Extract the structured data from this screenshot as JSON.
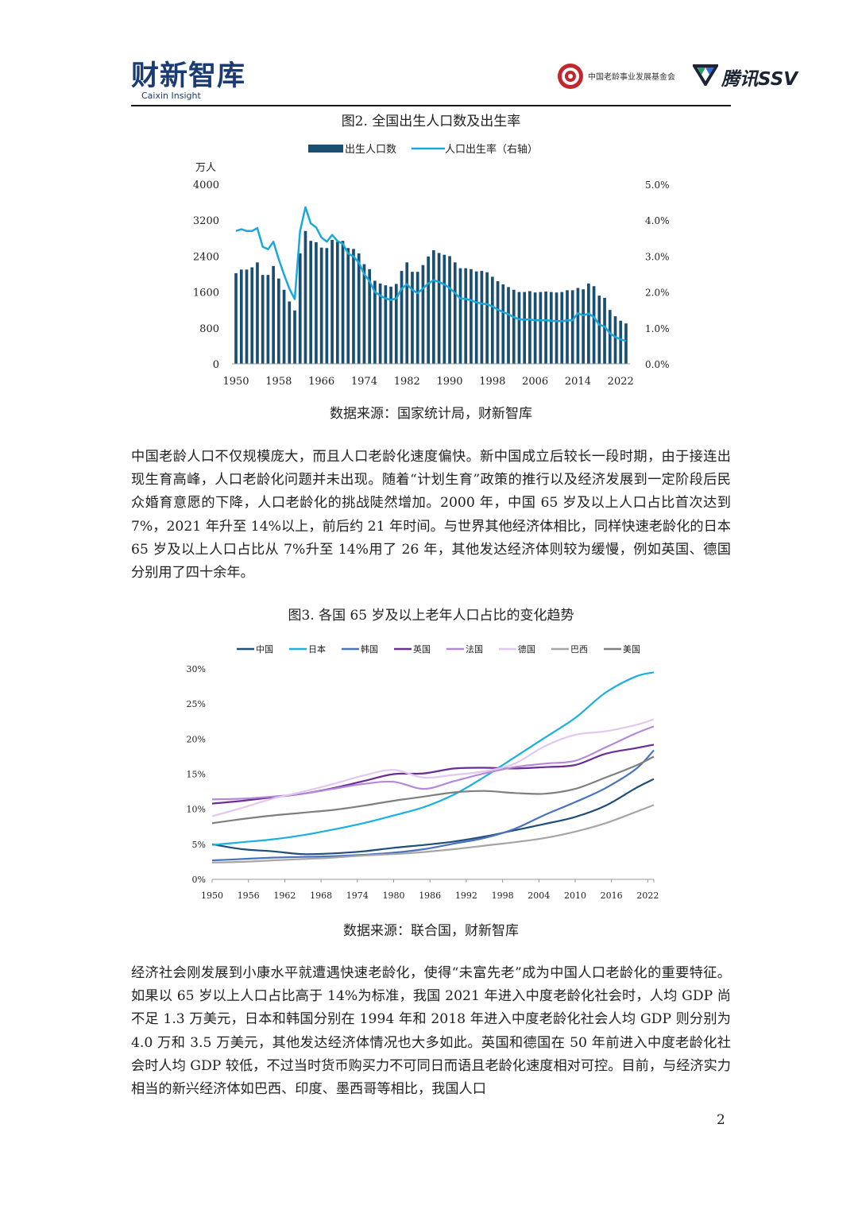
{
  "header": {
    "logo_cn": "财新智库",
    "logo_en": "Caixin Insight",
    "foundation": "中国老龄事业发展基金会",
    "partner": "腾讯SSV"
  },
  "figure2": {
    "title": "图2. 全国出生人口数及出生率",
    "source": "数据来源：国家统计局，财新智库"
  },
  "figure3": {
    "title": "图3. 各国 65 岁及以上老年人口占比的变化趋势",
    "source": "数据来源：联合国，财新智库"
  },
  "paragraph1": "中国老龄人口不仅规模庞大，而且人口老龄化速度偏快。新中国成立后较长一段时期，由于接连出现生育高峰，人口老龄化问题并未出现。随着“计划生育”政策的推行以及经济发展到一定阶段后民众婚育意愿的下降，人口老龄化的挑战陡然增加。2000 年，中国 65 岁及以上人口占比首次达到 7%，2021 年升至 14%以上，前后约 21 年时间。与世界其他经济体相比，同样快速老龄化的日本 65 岁及以上人口占比从 7%升至 14%用了 26 年，其他发达经济体则较为缓慢，例如英国、德国分别用了四十余年。",
  "paragraph2": "经济社会刚发展到小康水平就遭遇快速老龄化，使得“未富先老”成为中国人口老龄化的重要特征。如果以 65 岁以上人口占比高于 14%为标准，我国 2021 年进入中度老龄化社会时，人均 GDP 尚不足 1.3 万美元，日本和韩国分别在 1994 年和 2018 年进入中度老龄化社会人均 GDP 则分别为 4.0 万和 3.5 万美元，其他发达经济体情况也大多如此。英国和德国在 50 年前进入中度老龄化社会时人均 GDP 较低，不过当时货币购买力不可同日而语且老龄化速度相对可控。目前，与经济实力相当的新兴经济体如巴西、印度、墨西哥等相比，我国人口",
  "page_number": "2",
  "colors": {
    "bar": "#1b4f72",
    "rate_line": "#1aa7dc",
    "china": "#1f4e79",
    "japan": "#1ab0e0",
    "korea": "#4a72c0",
    "uk": "#6a2d96",
    "france": "#b48ad8",
    "germany": "#e2c8ef",
    "brazil": "#a6a6a6",
    "usa": "#7f7f7f"
  },
  "chart_data": [
    {
      "type": "bar+line",
      "title": "图2. 全国出生人口数及出生率",
      "y_unit_label": "万人",
      "legend": [
        "出生人口数",
        "人口出生率（右轴）"
      ],
      "x_ticks": [
        "1950",
        "1958",
        "1966",
        "1974",
        "1982",
        "1990",
        "1998",
        "2006",
        "2014",
        "2022"
      ],
      "y_left_ticks": [
        "0",
        "800",
        "1600",
        "2400",
        "3200",
        "4000"
      ],
      "y_right_ticks": [
        "0.0%",
        "1.0%",
        "2.0%",
        "3.0%",
        "4.0%",
        "5.0%"
      ],
      "ylim_left": [
        0,
        4000
      ],
      "ylim_right": [
        0,
        5.0
      ],
      "years": [
        1950,
        1951,
        1952,
        1953,
        1954,
        1955,
        1956,
        1957,
        1958,
        1959,
        1960,
        1961,
        1962,
        1963,
        1964,
        1965,
        1966,
        1967,
        1968,
        1969,
        1970,
        1971,
        1972,
        1973,
        1974,
        1975,
        1976,
        1977,
        1978,
        1979,
        1980,
        1981,
        1982,
        1983,
        1984,
        1985,
        1986,
        1987,
        1988,
        1989,
        1990,
        1991,
        1992,
        1993,
        1994,
        1995,
        1996,
        1997,
        1998,
        1999,
        2000,
        2001,
        2002,
        2003,
        2004,
        2005,
        2006,
        2007,
        2008,
        2009,
        2010,
        2011,
        2012,
        2013,
        2014,
        2015,
        2016,
        2017,
        2018,
        2019,
        2020,
        2021,
        2022,
        2023
      ],
      "births_10k": [
        2020,
        2100,
        2100,
        2150,
        2260,
        1980,
        1980,
        2180,
        1900,
        1650,
        1390,
        1190,
        2460,
        2960,
        2740,
        2710,
        2590,
        2580,
        2760,
        2720,
        2740,
        2580,
        2560,
        2460,
        2220,
        2110,
        1850,
        1790,
        1750,
        1720,
        1780,
        2070,
        2260,
        2050,
        2050,
        2200,
        2390,
        2530,
        2470,
        2430,
        2400,
        2260,
        2130,
        2130,
        2110,
        2060,
        2070,
        2040,
        1940,
        1840,
        1770,
        1710,
        1650,
        1600,
        1600,
        1620,
        1590,
        1600,
        1610,
        1600,
        1590,
        1600,
        1640,
        1640,
        1690,
        1660,
        1790,
        1730,
        1520,
        1470,
        1200,
        1060,
        960,
        900
      ],
      "birth_rate_pct": [
        3.7,
        3.75,
        3.7,
        3.7,
        3.78,
        3.26,
        3.19,
        3.4,
        2.92,
        2.48,
        2.09,
        1.8,
        3.7,
        4.36,
        3.91,
        3.8,
        3.52,
        3.4,
        3.59,
        3.42,
        3.34,
        3.07,
        2.99,
        2.82,
        2.5,
        2.3,
        2.0,
        1.9,
        1.82,
        1.78,
        1.82,
        2.09,
        2.22,
        2.06,
        1.97,
        2.1,
        2.24,
        2.33,
        2.28,
        2.21,
        2.11,
        1.97,
        1.82,
        1.81,
        1.77,
        1.71,
        1.68,
        1.66,
        1.6,
        1.51,
        1.44,
        1.38,
        1.3,
        1.24,
        1.23,
        1.24,
        1.21,
        1.21,
        1.21,
        1.2,
        1.19,
        1.19,
        1.21,
        1.21,
        1.41,
        1.35,
        1.4,
        1.3,
        1.09,
        1.04,
        0.85,
        0.75,
        0.68,
        0.64
      ]
    },
    {
      "type": "line",
      "title": "图3. 各国 65 岁及以上老年人口占比的变化趋势",
      "x_ticks": [
        "1950",
        "1956",
        "1962",
        "1968",
        "1974",
        "1980",
        "1986",
        "1992",
        "1998",
        "2004",
        "2010",
        "2016",
        "2022"
      ],
      "y_ticks": [
        "0%",
        "5%",
        "10%",
        "15%",
        "20%",
        "25%",
        "30%"
      ],
      "ylim": [
        0,
        30
      ],
      "xlim": [
        1950,
        2023
      ],
      "legend_position": "top",
      "series": [
        {
          "name": "中国",
          "key": "china",
          "x": [
            1950,
            1955,
            1960,
            1965,
            1970,
            1975,
            1980,
            1985,
            1990,
            1995,
            2000,
            2005,
            2010,
            2015,
            2020,
            2023
          ],
          "values": [
            5.0,
            4.3,
            4.0,
            3.6,
            3.7,
            4.0,
            4.5,
            4.9,
            5.4,
            6.1,
            7.0,
            7.9,
            8.9,
            10.5,
            13.0,
            14.3
          ]
        },
        {
          "name": "日本",
          "key": "japan",
          "x": [
            1950,
            1955,
            1960,
            1965,
            1970,
            1975,
            1980,
            1985,
            1990,
            1995,
            2000,
            2005,
            2010,
            2015,
            2020,
            2023
          ],
          "values": [
            4.9,
            5.3,
            5.7,
            6.3,
            7.1,
            8.0,
            9.1,
            10.3,
            12.1,
            14.6,
            17.4,
            20.2,
            23.0,
            26.6,
            28.9,
            29.5
          ]
        },
        {
          "name": "韩国",
          "key": "korea",
          "x": [
            1950,
            1955,
            1960,
            1965,
            1970,
            1975,
            1980,
            1985,
            1990,
            1995,
            2000,
            2005,
            2010,
            2015,
            2020,
            2023
          ],
          "values": [
            2.7,
            2.9,
            3.1,
            3.2,
            3.3,
            3.5,
            3.8,
            4.3,
            5.1,
            5.9,
            7.2,
            9.2,
            11.0,
            13.0,
            15.7,
            18.4
          ]
        },
        {
          "name": "英国",
          "key": "uk",
          "x": [
            1950,
            1955,
            1960,
            1965,
            1970,
            1975,
            1980,
            1985,
            1990,
            1995,
            2000,
            2005,
            2010,
            2015,
            2020,
            2023
          ],
          "values": [
            10.8,
            11.2,
            11.7,
            12.2,
            13.0,
            14.0,
            15.0,
            15.1,
            15.8,
            15.9,
            15.8,
            16.0,
            16.3,
            17.9,
            18.7,
            19.2
          ]
        },
        {
          "name": "法国",
          "key": "france",
          "x": [
            1950,
            1955,
            1960,
            1965,
            1970,
            1975,
            1980,
            1985,
            1990,
            1995,
            2000,
            2005,
            2010,
            2015,
            2020,
            2023
          ],
          "values": [
            11.4,
            11.5,
            11.8,
            12.2,
            12.9,
            13.6,
            13.9,
            12.9,
            14.0,
            15.1,
            16.0,
            16.5,
            16.9,
            18.8,
            20.8,
            21.8
          ]
        },
        {
          "name": "德国",
          "key": "germany",
          "x": [
            1950,
            1955,
            1960,
            1965,
            1970,
            1975,
            1980,
            1985,
            1990,
            1995,
            2000,
            2005,
            2010,
            2015,
            2020,
            2023
          ],
          "values": [
            9.0,
            10.2,
            11.5,
            12.5,
            13.6,
            14.8,
            15.6,
            14.5,
            14.9,
            15.4,
            16.5,
            19.0,
            20.6,
            21.1,
            22.0,
            22.8
          ]
        },
        {
          "name": "巴西",
          "key": "brazil",
          "x": [
            1950,
            1955,
            1960,
            1965,
            1970,
            1975,
            1980,
            1985,
            1990,
            1995,
            2000,
            2005,
            2010,
            2015,
            2020,
            2023
          ],
          "values": [
            2.4,
            2.5,
            2.7,
            2.9,
            3.1,
            3.4,
            3.6,
            3.9,
            4.3,
            4.8,
            5.3,
            5.9,
            6.8,
            8.0,
            9.6,
            10.6
          ]
        },
        {
          "name": "美国",
          "key": "usa",
          "x": [
            1950,
            1955,
            1960,
            1965,
            1970,
            1975,
            1980,
            1985,
            1990,
            1995,
            2000,
            2005,
            2010,
            2015,
            2020,
            2023
          ],
          "values": [
            8.0,
            8.6,
            9.1,
            9.5,
            9.9,
            10.5,
            11.2,
            11.8,
            12.4,
            12.6,
            12.3,
            12.2,
            12.9,
            14.5,
            16.2,
            17.5
          ]
        }
      ]
    }
  ]
}
